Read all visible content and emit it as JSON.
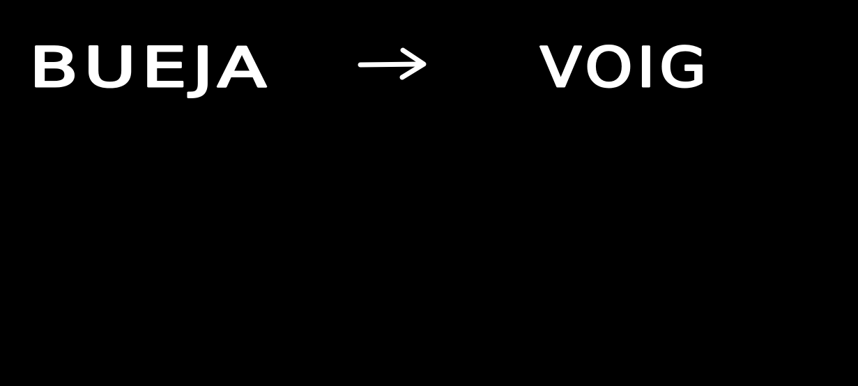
{
  "left_word": "BUEJA",
  "right_word": "VOIG"
}
